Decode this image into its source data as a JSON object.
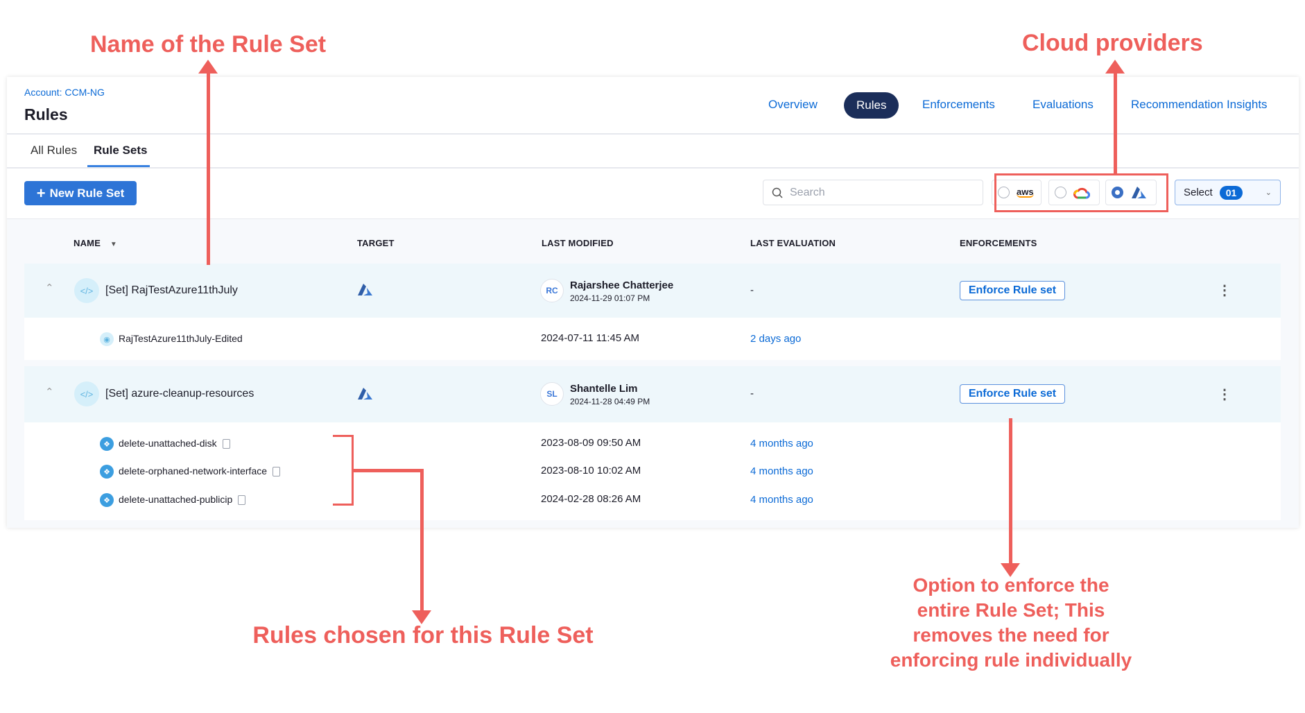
{
  "header": {
    "breadcrumb": "Account: CCM-NG",
    "title": "Rules"
  },
  "nav": [
    {
      "label": "Overview"
    },
    {
      "label": "Rules",
      "active": true
    },
    {
      "label": "Enforcements"
    },
    {
      "label": "Evaluations"
    },
    {
      "label": "Recommendation Insights"
    }
  ],
  "tabs": [
    {
      "label": "All Rules"
    },
    {
      "label": "Rule Sets",
      "active": true
    }
  ],
  "toolbar": {
    "new_label": "New Rule Set",
    "search_placeholder": "Search",
    "select_label": "Select",
    "select_count": "01",
    "providers": [
      {
        "name": "aws",
        "label": "aws",
        "selected": false
      },
      {
        "name": "gcp",
        "selected": false
      },
      {
        "name": "azure",
        "selected": true
      }
    ]
  },
  "columns": {
    "name": "NAME",
    "target": "TARGET",
    "last_modified": "LAST MODIFIED",
    "last_evaluation": "LAST EVALUATION",
    "enforcements": "ENFORCEMENTS"
  },
  "rule_sets": [
    {
      "name": "[Set] RajTestAzure11thJuly",
      "target": "azure",
      "initials": "RC",
      "user": "Rajarshee Chatterjee",
      "modified": "2024-11-29 01:07 PM",
      "last_eval": "-",
      "enforce_label": "Enforce Rule set",
      "rules": [
        {
          "name": "RajTestAzure11thJuly-Edited",
          "modified": "2024-07-11 11:45 AM",
          "last_eval": "2 days ago"
        }
      ]
    },
    {
      "name": "[Set] azure-cleanup-resources",
      "target": "azure",
      "initials": "SL",
      "user": "Shantelle Lim",
      "modified": "2024-11-28 04:49 PM",
      "last_eval": "-",
      "enforce_label": "Enforce Rule set",
      "rules": [
        {
          "name": "delete-unattached-disk",
          "modified": "2023-08-09 09:50 AM",
          "last_eval": "4 months ago"
        },
        {
          "name": "delete-orphaned-network-interface",
          "modified": "2023-08-10 10:02 AM",
          "last_eval": "4 months ago"
        },
        {
          "name": "delete-unattached-publicip",
          "modified": "2024-02-28 08:26 AM",
          "last_eval": "4 months ago"
        }
      ]
    }
  ],
  "annotations": {
    "name": "Name of the Rule Set",
    "providers": "Cloud providers",
    "rules": "Rules chosen for this Rule Set",
    "enforce": [
      "Option to enforce the",
      "entire Rule Set; This",
      "removes the need for",
      "enforcing rule individually"
    ]
  },
  "colors": {
    "accent": "#0b6ad6",
    "nav_active": "#1b2e5a",
    "annotation": "#ee5f5b"
  }
}
